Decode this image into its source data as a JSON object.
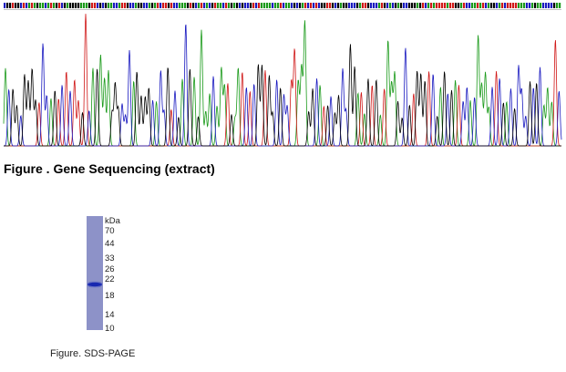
{
  "figure1": {
    "caption": "Figure . Gene Sequencing (extract)"
  },
  "figure2": {
    "unit": "kDa",
    "markers": [
      "70",
      "44",
      "33",
      "26",
      "22",
      "18",
      "14",
      "10"
    ],
    "caption": "Figure. SDS-PAGE"
  }
}
